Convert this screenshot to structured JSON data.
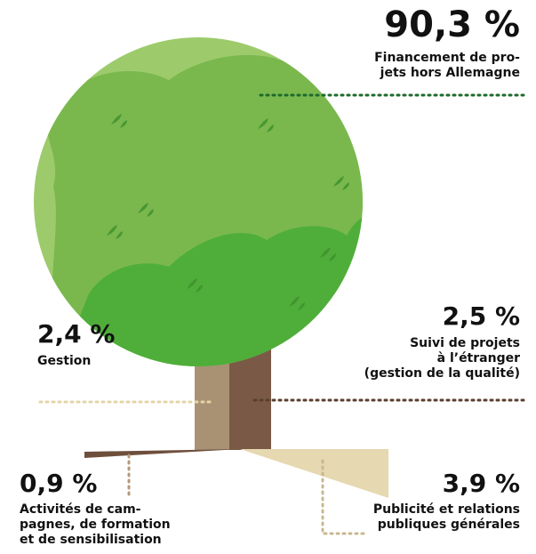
{
  "chart_data": {
    "type": "tree",
    "categories": [
      "Financement de pro-\njets hors Allemagne",
      "Suivi de projets\nà l’étranger\n(gestion de la qualité)",
      "Gestion",
      "Activités de cam-\npagnes, de formation\net de sensibilisation",
      "Publicité et relations\npubliques générales"
    ],
    "values": [
      90.3,
      2.5,
      2.4,
      0.9,
      3.9
    ],
    "value_labels": [
      "90,3 %",
      "2,5 %",
      "2,4 %",
      "0,9 %",
      "3,9 %"
    ],
    "colors": [
      "#7ab84e",
      "#7a5a46",
      "#a89273",
      "#6e4f3c",
      "#e6d8b0"
    ]
  }
}
